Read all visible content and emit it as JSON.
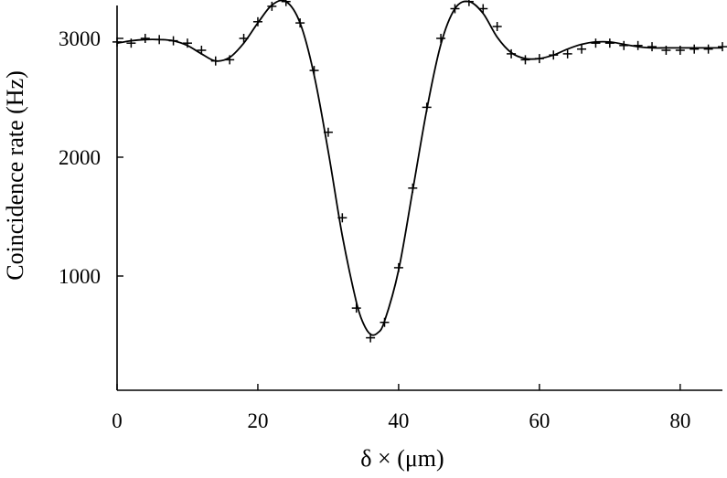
{
  "chart_data": {
    "type": "scatter",
    "xlabel": "δ × (μm)",
    "ylabel": "Coincidence rate (Hz)",
    "xlim": [
      0,
      86
    ],
    "ylim": [
      0,
      3200
    ],
    "x_ticks": [
      0,
      20,
      40,
      60,
      80
    ],
    "y_ticks": [
      1000,
      2000,
      3000
    ],
    "grid": false,
    "legend": "none",
    "series": [
      {
        "kind": "points",
        "marker": "plus",
        "x": [
          0,
          2,
          4,
          6,
          8,
          10,
          12,
          14,
          16,
          18,
          20,
          22,
          24,
          26,
          28,
          30,
          32,
          34,
          36,
          38,
          40,
          42,
          44,
          46,
          48,
          50,
          52,
          54,
          56,
          58,
          60,
          62,
          64,
          66,
          68,
          70,
          72,
          74,
          76,
          78,
          80,
          82,
          84,
          86
        ],
        "y": [
          2970,
          2960,
          3000,
          2990,
          2980,
          2960,
          2900,
          2810,
          2820,
          3000,
          3140,
          3270,
          3310,
          3130,
          2730,
          2210,
          1490,
          730,
          480,
          610,
          1070,
          1740,
          2420,
          3000,
          3250,
          3310,
          3250,
          3100,
          2870,
          2820,
          2830,
          2860,
          2870,
          2910,
          2960,
          2960,
          2940,
          2940,
          2930,
          2900,
          2900,
          2910,
          2910,
          2930
        ]
      },
      {
        "kind": "fit",
        "style": "solid",
        "x": [
          0,
          2,
          4,
          6,
          8,
          10,
          12,
          14,
          16,
          18,
          20,
          22,
          24,
          26,
          28,
          30,
          32,
          34,
          35,
          36,
          37,
          38,
          40,
          42,
          44,
          46,
          48,
          50,
          52,
          54,
          56,
          58,
          60,
          62,
          64,
          66,
          68,
          70,
          72,
          74,
          76,
          78,
          80,
          82,
          84,
          86
        ],
        "y": [
          2960,
          2980,
          2990,
          2990,
          2980,
          2940,
          2870,
          2810,
          2840,
          2960,
          3130,
          3280,
          3310,
          3130,
          2690,
          2050,
          1340,
          780,
          600,
          510,
          520,
          620,
          1050,
          1720,
          2400,
          2950,
          3250,
          3310,
          3210,
          3010,
          2880,
          2830,
          2830,
          2860,
          2910,
          2950,
          2970,
          2970,
          2950,
          2930,
          2920,
          2920,
          2920,
          2920,
          2920,
          2920
        ]
      }
    ]
  }
}
